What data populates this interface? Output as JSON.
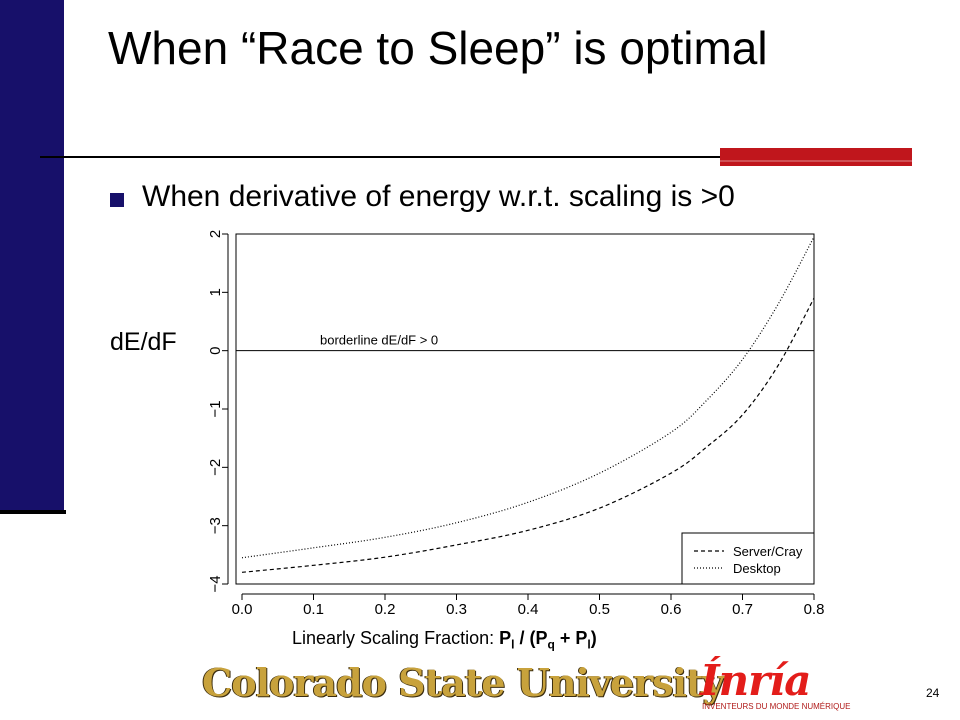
{
  "slide": {
    "title": "When “Race to Sleep” is optimal",
    "bullet": "When derivative of energy w.r.t. scaling is >0",
    "y_label_big": "dE/dF",
    "x_label_plain": "Linearly Scaling Fraction: ",
    "x_label_formula": {
      "p1": "P",
      "p1_sub": "l",
      "mid": " / (P",
      "q_sub": "q",
      "plus": " + P",
      "l_sub": "l",
      "close": ")"
    },
    "page_number": "24",
    "logos": {
      "csu": "Colorado State University",
      "inria": "Ínría",
      "inria_tagline": "INVENTEURS DU MONDE NUMÉRIQUE"
    },
    "colors": {
      "sidebar": "#17106a",
      "accent": "#c0161c",
      "csu_gold": "#c8a23c",
      "inria_red": "#e31d1a"
    }
  },
  "chart_data": {
    "type": "line",
    "x_ticks": [
      "0.0",
      "0.1",
      "0.2",
      "0.3",
      "0.4",
      "0.5",
      "0.6",
      "0.7",
      "0.8"
    ],
    "y_ticks": [
      "−4",
      "−3",
      "−2",
      "−1",
      "0",
      "1",
      "2"
    ],
    "xlim": [
      0,
      0.8
    ],
    "ylim": [
      -4,
      2
    ],
    "reference_line": {
      "y": 0,
      "label": "borderline dE/dF > 0"
    },
    "series": [
      {
        "name": "Server/Cray",
        "style": "dashed",
        "x": [
          0.0,
          0.1,
          0.2,
          0.3,
          0.4,
          0.5,
          0.6,
          0.65,
          0.7,
          0.75,
          0.8
        ],
        "y": [
          -3.8,
          -3.68,
          -3.54,
          -3.33,
          -3.08,
          -2.7,
          -2.1,
          -1.65,
          -1.1,
          -0.25,
          0.9
        ]
      },
      {
        "name": "Desktop",
        "style": "dotted",
        "x": [
          0.0,
          0.1,
          0.2,
          0.3,
          0.4,
          0.5,
          0.6,
          0.65,
          0.7,
          0.75,
          0.8
        ],
        "y": [
          -3.55,
          -3.38,
          -3.2,
          -2.95,
          -2.6,
          -2.1,
          -1.4,
          -0.85,
          -0.15,
          0.8,
          1.95
        ]
      }
    ],
    "legend_position": "bottom-right"
  }
}
